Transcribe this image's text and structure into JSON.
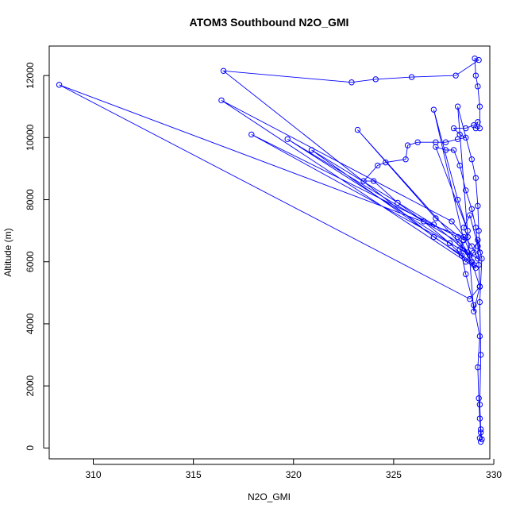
{
  "chart_data": {
    "type": "line",
    "title": "ATOM3 Southbound N2O_GMI",
    "xlabel": "N2O_GMI",
    "ylabel": "Altitude (m)",
    "xlim": [
      307.8,
      329.8
    ],
    "ylim": [
      -350,
      12950
    ],
    "xticks": [
      310,
      315,
      320,
      325,
      330
    ],
    "yticks": [
      0,
      2000,
      4000,
      6000,
      8000,
      10000,
      12000
    ],
    "grid": false,
    "legend": "none",
    "color": "#0000ff",
    "series": [
      {
        "marker": "open-circle",
        "points": [
          [
            329.35,
            200
          ],
          [
            329.3,
            320
          ],
          [
            329.35,
            500
          ],
          [
            329.3,
            950
          ],
          [
            329.25,
            1600
          ],
          [
            329.2,
            2600
          ],
          [
            329.3,
            3600
          ],
          [
            329.0,
            4600
          ],
          [
            328.6,
            5600
          ],
          [
            328.4,
            6200
          ],
          [
            327.8,
            6600
          ],
          [
            326.5,
            7300
          ],
          [
            325.2,
            7900
          ],
          [
            324.0,
            8600
          ],
          [
            323.5,
            8600
          ],
          [
            324.2,
            9100
          ],
          [
            324.6,
            9200
          ],
          [
            325.6,
            9300
          ],
          [
            325.7,
            9750
          ],
          [
            326.2,
            9850
          ],
          [
            327.1,
            9850
          ],
          [
            327.6,
            9850
          ],
          [
            328.2,
            9950
          ],
          [
            328.6,
            10000
          ],
          [
            328.3,
            10100
          ],
          [
            328.0,
            10300
          ],
          [
            328.6,
            10300
          ],
          [
            329.0,
            10400
          ],
          [
            329.2,
            10500
          ],
          [
            329.1,
            10300
          ],
          [
            329.3,
            10300
          ],
          [
            329.3,
            11000
          ],
          [
            329.2,
            11650
          ],
          [
            329.1,
            12000
          ],
          [
            329.05,
            12550
          ],
          [
            329.25,
            12500
          ],
          [
            328.1,
            12000
          ],
          [
            325.9,
            11950
          ],
          [
            324.1,
            11880
          ],
          [
            322.9,
            11780
          ],
          [
            316.5,
            12150
          ],
          [
            327.0,
            6800
          ],
          [
            328.9,
            6000
          ],
          [
            329.3,
            5200
          ],
          [
            328.8,
            4800
          ],
          [
            308.3,
            11700
          ],
          [
            328.5,
            6800
          ],
          [
            329.1,
            5800
          ],
          [
            316.4,
            11200
          ],
          [
            327.9,
            7300
          ],
          [
            328.9,
            6500
          ],
          [
            329.2,
            6100
          ],
          [
            317.9,
            10100
          ],
          [
            328.2,
            6800
          ],
          [
            328.8,
            6200
          ],
          [
            319.7,
            9950
          ],
          [
            328.3,
            6600
          ],
          [
            329.0,
            5900
          ],
          [
            320.9,
            9600
          ],
          [
            327.0,
            7200
          ],
          [
            328.7,
            6300
          ],
          [
            323.2,
            10250
          ],
          [
            327.1,
            7400
          ],
          [
            328.5,
            6700
          ],
          [
            327.0,
            10900
          ],
          [
            328.2,
            8000
          ],
          [
            328.7,
            7000
          ],
          [
            327.1,
            9700
          ],
          [
            327.6,
            9600
          ],
          [
            328.0,
            9600
          ],
          [
            328.3,
            9100
          ],
          [
            328.6,
            8300
          ],
          [
            328.9,
            7700
          ],
          [
            329.1,
            7100
          ],
          [
            329.2,
            6500
          ],
          [
            329.25,
            5900
          ],
          [
            329.3,
            5200
          ],
          [
            329.0,
            4400
          ],
          [
            328.2,
            11000
          ],
          [
            328.9,
            9300
          ],
          [
            329.1,
            8700
          ],
          [
            329.2,
            7800
          ],
          [
            329.25,
            7000
          ],
          [
            329.3,
            6300
          ],
          [
            328.8,
            7500
          ],
          [
            328.5,
            7100
          ],
          [
            328.7,
            6800
          ],
          [
            328.3,
            6400
          ],
          [
            328.6,
            6000
          ],
          [
            329.0,
            6300
          ],
          [
            329.2,
            6700
          ],
          [
            329.4,
            6100
          ],
          [
            329.3,
            4700
          ],
          [
            329.35,
            3000
          ],
          [
            329.3,
            1400
          ],
          [
            329.35,
            600
          ],
          [
            329.4,
            280
          ]
        ]
      }
    ]
  }
}
